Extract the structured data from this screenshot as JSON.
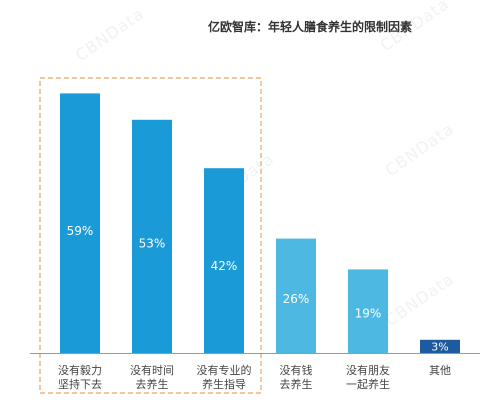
{
  "chart_data": {
    "type": "bar",
    "title": "亿欧智库：年轻人膳食养生的限制因素",
    "categories": [
      [
        "没有毅力",
        "坚持下去"
      ],
      [
        "没有时间",
        "去养生"
      ],
      [
        "没有专业的",
        "养生指导"
      ],
      [
        "没有钱",
        "去养生"
      ],
      [
        "没有朋友",
        "一起养生"
      ],
      [
        "其他"
      ]
    ],
    "values": [
      59,
      53,
      42,
      26,
      19,
      3
    ],
    "value_labels": [
      "59%",
      "53%",
      "42%",
      "26%",
      "19%",
      "3%"
    ],
    "ylim": [
      0,
      70
    ],
    "colors": [
      "#1a9ad7",
      "#1a9ad7",
      "#1a9ad7",
      "#4db9e3",
      "#4db9e3",
      "#1e5aa0"
    ],
    "highlight": {
      "color": "#f0b47a",
      "categories": [
        0,
        1,
        2
      ]
    },
    "watermark": "CBNData",
    "grid": false,
    "legend": "none"
  }
}
